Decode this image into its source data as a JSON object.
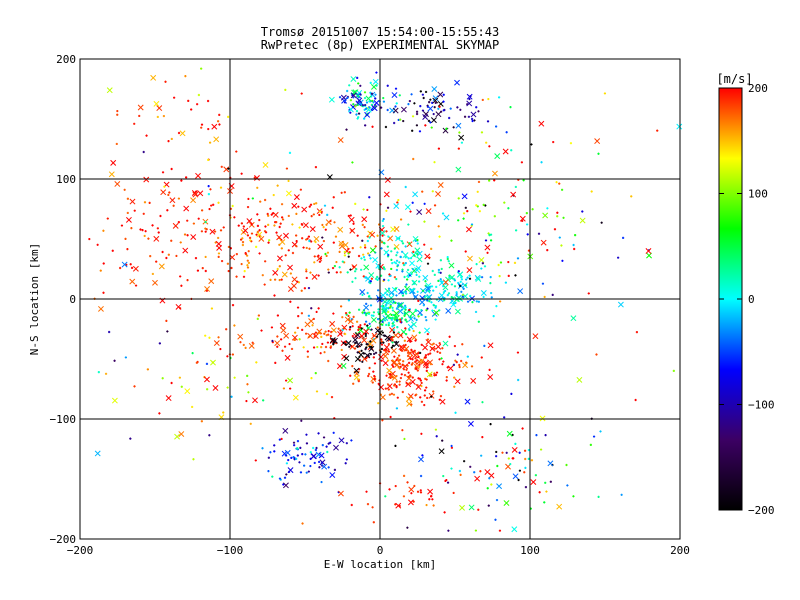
{
  "chart_data": {
    "type": "scatter",
    "title": "Tromsø 20151007 15:54:00-15:55:43",
    "subtitle": "RwPretec (8p) EXPERIMENTAL SKYMAP",
    "xlabel": "E-W location [km]",
    "ylabel": "N-S location [km]",
    "xlim": [
      -200,
      200
    ],
    "ylim": [
      -200,
      200
    ],
    "xticks": [
      -200,
      -100,
      0,
      100,
      200
    ],
    "yticks": [
      -200,
      -100,
      0,
      100,
      200
    ],
    "grid": true,
    "colorbar": {
      "label": "[m/s]",
      "range": [
        -200,
        200
      ],
      "ticks": [
        200,
        100,
        0,
        -100,
        -200
      ],
      "palette": [
        "#000000",
        "#3c0064",
        "#0000ff",
        "#00ffff",
        "#00ff00",
        "#ffff00",
        "#ff0000"
      ]
    },
    "markers": {
      "small": "dot",
      "large": "x"
    },
    "clusters": [
      {
        "x": -105,
        "y": 55,
        "sx": 55,
        "sy": 28,
        "n": 280,
        "vmean": 190,
        "vsd": 20
      },
      {
        "x": -45,
        "y": 45,
        "sx": 35,
        "sy": 20,
        "n": 120,
        "vmean": 175,
        "vsd": 30
      },
      {
        "x": -10,
        "y": 165,
        "sx": 8,
        "sy": 8,
        "n": 90,
        "vmean": -20,
        "vsd": 60
      },
      {
        "x": 35,
        "y": 158,
        "sx": 22,
        "sy": 10,
        "n": 80,
        "vmean": -110,
        "vsd": 60
      },
      {
        "x": 10,
        "y": 30,
        "sx": 15,
        "sy": 15,
        "n": 110,
        "vmean": 10,
        "vsd": 25
      },
      {
        "x": 30,
        "y": 5,
        "sx": 22,
        "sy": 10,
        "n": 180,
        "vmean": 0,
        "vsd": 25
      },
      {
        "x": 10,
        "y": -15,
        "sx": 12,
        "sy": 8,
        "n": 130,
        "vmean": 20,
        "vsd": 40
      },
      {
        "x": 15,
        "y": -55,
        "sx": 18,
        "sy": 15,
        "n": 260,
        "vmean": 190,
        "vsd": 15
      },
      {
        "x": -40,
        "y": -30,
        "sx": 22,
        "sy": 10,
        "n": 120,
        "vmean": 190,
        "vsd": 20
      },
      {
        "x": -10,
        "y": -35,
        "sx": 12,
        "sy": 8,
        "n": 60,
        "vmean": -190,
        "vsd": 15
      },
      {
        "x": -50,
        "y": -130,
        "sx": 13,
        "sy": 12,
        "n": 80,
        "vmean": -75,
        "vsd": 40
      },
      {
        "x": 80,
        "y": -140,
        "sx": 28,
        "sy": 25,
        "n": 90,
        "vmean": 20,
        "vsd": 150
      },
      {
        "x": 70,
        "y": 50,
        "sx": 45,
        "sy": 35,
        "n": 90,
        "vmean": 50,
        "vsd": 150
      },
      {
        "x": 80,
        "y": 110,
        "sx": 40,
        "sy": 40,
        "n": 50,
        "vmean": 150,
        "vsd": 80
      },
      {
        "x": -130,
        "y": 150,
        "sx": 30,
        "sy": 25,
        "n": 35,
        "vmean": 170,
        "vsd": 40
      },
      {
        "x": -90,
        "y": -70,
        "sx": 35,
        "sy": 25,
        "n": 60,
        "vmean": 170,
        "vsd": 50
      },
      {
        "x": 20,
        "y": -160,
        "sx": 18,
        "sy": 8,
        "n": 30,
        "vmean": 190,
        "vsd": 15
      },
      {
        "x": 0,
        "y": 0,
        "sx": 110,
        "sy": 110,
        "n": 160,
        "vmean": 60,
        "vsd": 150
      }
    ]
  }
}
